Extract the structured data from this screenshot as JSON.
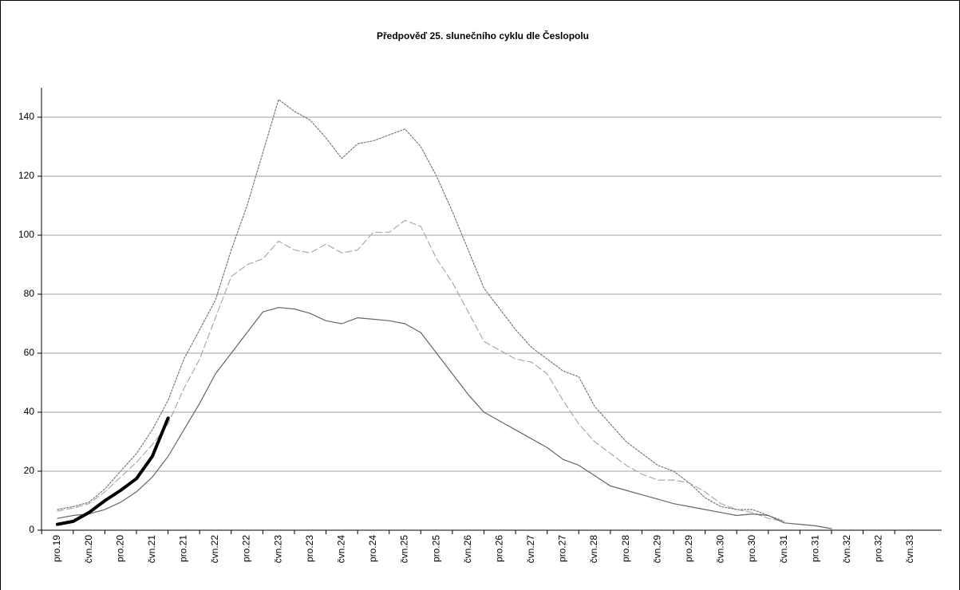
{
  "chart_data": {
    "type": "line",
    "title": "Předpověď 25. slunečního cyklu dle Česlopolu",
    "categories": [
      "pro.19",
      null,
      "čvn.20",
      null,
      "pro.20",
      null,
      "čvn.21",
      null,
      "pro.21",
      null,
      "čvn.22",
      null,
      "pro.22",
      null,
      "čvn.23",
      null,
      "pro.23",
      null,
      "čvn.24",
      null,
      "pro.24",
      null,
      "čvn.25",
      null,
      "pro.25",
      null,
      "čvn.26",
      null,
      "pro.26",
      null,
      "čvn.27",
      null,
      "pro.27",
      null,
      "čvn.28",
      null,
      "pro.28",
      null,
      "čvn.29",
      null,
      "pro.29",
      null,
      "čvn.30",
      null,
      "pro.30",
      null,
      "čvn.31",
      null,
      "pro.31",
      null,
      "čvn.32",
      null,
      "pro.32",
      null,
      "čvn.33"
    ],
    "series": [
      {
        "color": "#777777",
        "dash": "dotted",
        "width": 1.2,
        "values": [
          7,
          8,
          9.5,
          14,
          20,
          26,
          34,
          44,
          58,
          68,
          78,
          95,
          110,
          128,
          146,
          142,
          139,
          133,
          126,
          131,
          132,
          134,
          136,
          130,
          120,
          108,
          95,
          82,
          75,
          68,
          62,
          58,
          54,
          52,
          42,
          36,
          30,
          26,
          22,
          20,
          16,
          11,
          8,
          7,
          7,
          5,
          3,
          null,
          null,
          null,
          null,
          null,
          null,
          null,
          null
        ]
      },
      {
        "color": "#aaaaaa",
        "dash": "dashed",
        "width": 1.2,
        "values": [
          6.5,
          7.5,
          9,
          13,
          18,
          23,
          29,
          36,
          48,
          58,
          72,
          86,
          90,
          92,
          98,
          95,
          94,
          97,
          94,
          95,
          101,
          101,
          105,
          103,
          92,
          84,
          74,
          64,
          61,
          58,
          57,
          53,
          44,
          36,
          30,
          26,
          22,
          19,
          17,
          17,
          16,
          13,
          9,
          7,
          6,
          4,
          3,
          null,
          null,
          null,
          null,
          null,
          null,
          null,
          null
        ]
      },
      {
        "color": "#666666",
        "dash": "solid",
        "width": 1.2,
        "values": [
          4,
          5,
          5.5,
          7,
          9.5,
          13,
          18,
          25,
          34,
          43,
          53,
          60,
          67,
          74,
          75.5,
          75,
          73.5,
          71,
          70,
          72,
          71.5,
          71,
          70,
          67,
          60,
          53,
          46,
          40,
          37,
          34,
          31,
          28,
          24,
          22,
          18.5,
          15,
          13.5,
          12,
          10.5,
          9,
          8,
          7,
          6,
          5,
          5.5,
          5,
          2.5,
          2,
          1.5,
          0.5,
          null,
          null,
          null,
          null,
          null
        ]
      },
      {
        "color": "#000000",
        "dash": "solid",
        "width": 4,
        "values": [
          2,
          3,
          6,
          10,
          13.5,
          17.5,
          25,
          38,
          null,
          null,
          null,
          null,
          null,
          null,
          null,
          null,
          null,
          null,
          null,
          null,
          null,
          null,
          null,
          null,
          null,
          null,
          null,
          null,
          null,
          null,
          null,
          null,
          null,
          null,
          null,
          null,
          null,
          null,
          null,
          null,
          null,
          null,
          null,
          null,
          null,
          null,
          null,
          null,
          null,
          null,
          null,
          null,
          null,
          null,
          null
        ]
      }
    ],
    "ylim": [
      0,
      150
    ],
    "yticks": [
      0,
      20,
      40,
      60,
      80,
      100,
      120,
      140
    ],
    "grid": true
  }
}
